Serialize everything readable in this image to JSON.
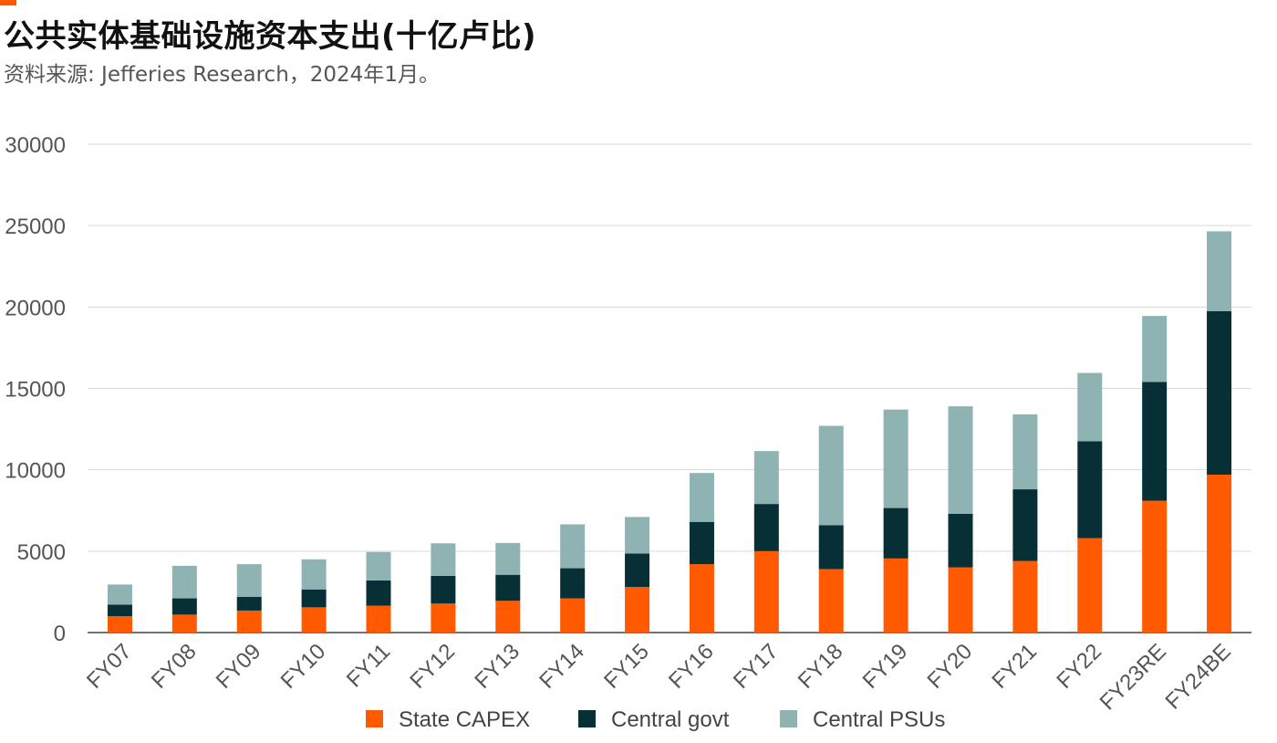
{
  "header": {
    "title": "公共实体基础设施资本支出(十亿卢比)",
    "subtitle": "资料来源: Jefferies Research，2024年1月。"
  },
  "colors": {
    "accent": "#ff5a00",
    "state": "#ff5a00",
    "central_govt": "#062f36",
    "central_psus": "#8fb3b3",
    "grid": "#d9d9d9",
    "tick_text": "#555555"
  },
  "chart_data": {
    "type": "bar",
    "stacked": true,
    "categories": [
      "FY07",
      "FY08",
      "FY09",
      "FY10",
      "FY11",
      "FY12",
      "FY13",
      "FY14",
      "FY15",
      "FY16",
      "FY17",
      "FY18",
      "FY19",
      "FY20",
      "FY21",
      "FY22",
      "FY23RE",
      "FY24BE"
    ],
    "series": [
      {
        "name": "State CAPEX",
        "color": "#ff5a00",
        "values": [
          1000,
          1100,
          1350,
          1550,
          1650,
          1780,
          1950,
          2100,
          2800,
          4200,
          5000,
          3900,
          4550,
          4000,
          4400,
          5800,
          8100,
          9700
        ]
      },
      {
        "name": "Central govt",
        "color": "#062f36",
        "values": [
          720,
          1000,
          850,
          1100,
          1550,
          1700,
          1600,
          1850,
          2050,
          2600,
          2900,
          2700,
          3100,
          3300,
          4400,
          5950,
          7300,
          10050
        ]
      },
      {
        "name": "Central PSUs",
        "color": "#8fb3b3",
        "values": [
          1230,
          2000,
          2000,
          1850,
          1750,
          2000,
          1950,
          2700,
          2250,
          3000,
          3250,
          6100,
          6050,
          6600,
          4600,
          4200,
          4050,
          4900
        ]
      }
    ],
    "ylim": [
      0,
      30000
    ],
    "yticks": [
      0,
      5000,
      10000,
      15000,
      20000,
      25000,
      30000
    ],
    "xlabel": "",
    "ylabel": "",
    "grid": true,
    "legend_position": "bottom-center"
  }
}
